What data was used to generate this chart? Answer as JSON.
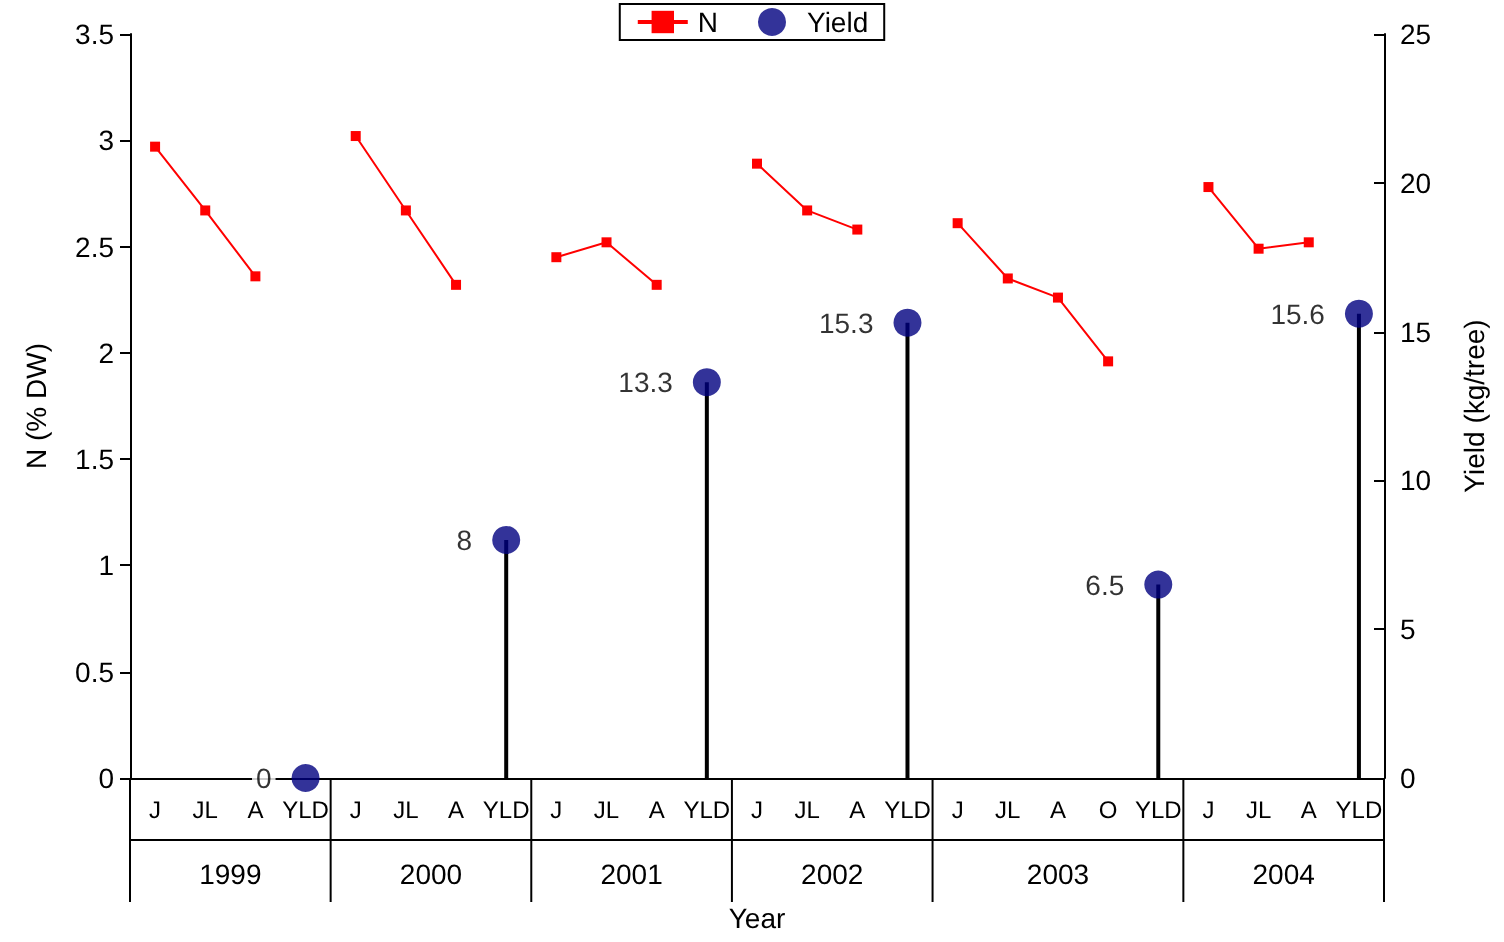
{
  "chart_data": {
    "type": "line",
    "xlabel": "Year",
    "ylabel": "N (% DW)",
    "y2label": "Yield (kg/tree)",
    "categories": [
      "J",
      "JL",
      "A",
      "YLD",
      "J",
      "JL",
      "A",
      "YLD",
      "J",
      "JL",
      "A",
      "YLD",
      "J",
      "JL",
      "A",
      "YLD",
      "J",
      "JL",
      "A",
      "O",
      "YLD",
      "J",
      "JL",
      "A",
      "YLD"
    ],
    "series": [
      {
        "name": "N",
        "color": "#ff0000",
        "marker": "square",
        "values": [
          2.97,
          2.67,
          2.36,
          null,
          3.02,
          2.67,
          2.32,
          null,
          2.45,
          2.52,
          2.32,
          null,
          2.89,
          2.67,
          2.58,
          null,
          2.61,
          2.35,
          2.26,
          1.96,
          null,
          2.78,
          2.49,
          2.52,
          null
        ]
      },
      {
        "name": "Yield",
        "type": "lollipop",
        "axis": "y2",
        "color": "#000080",
        "marker": "circle",
        "values": [
          null,
          null,
          null,
          0,
          null,
          null,
          null,
          8,
          null,
          null,
          null,
          13.3,
          null,
          null,
          null,
          15.3,
          null,
          null,
          null,
          null,
          6.5,
          null,
          null,
          null,
          15.6
        ],
        "value_labels": [
          null,
          null,
          null,
          "0",
          null,
          null,
          null,
          "8",
          null,
          null,
          null,
          "13.3",
          null,
          null,
          null,
          "15.3",
          null,
          null,
          null,
          null,
          "6.5",
          null,
          null,
          null,
          "15.6"
        ]
      }
    ],
    "annotations": [
      "1999",
      "2000",
      "2001",
      "2002",
      "2003",
      "2004"
    ],
    "ylim": [
      0,
      3.5
    ],
    "yticks": [
      0,
      0.5,
      1,
      1.5,
      2,
      2.5,
      3,
      3.5
    ],
    "y2lim": [
      0,
      25
    ],
    "y2ticks": [
      0,
      5,
      10,
      15,
      20,
      25
    ],
    "grid": false,
    "legend": "top"
  }
}
